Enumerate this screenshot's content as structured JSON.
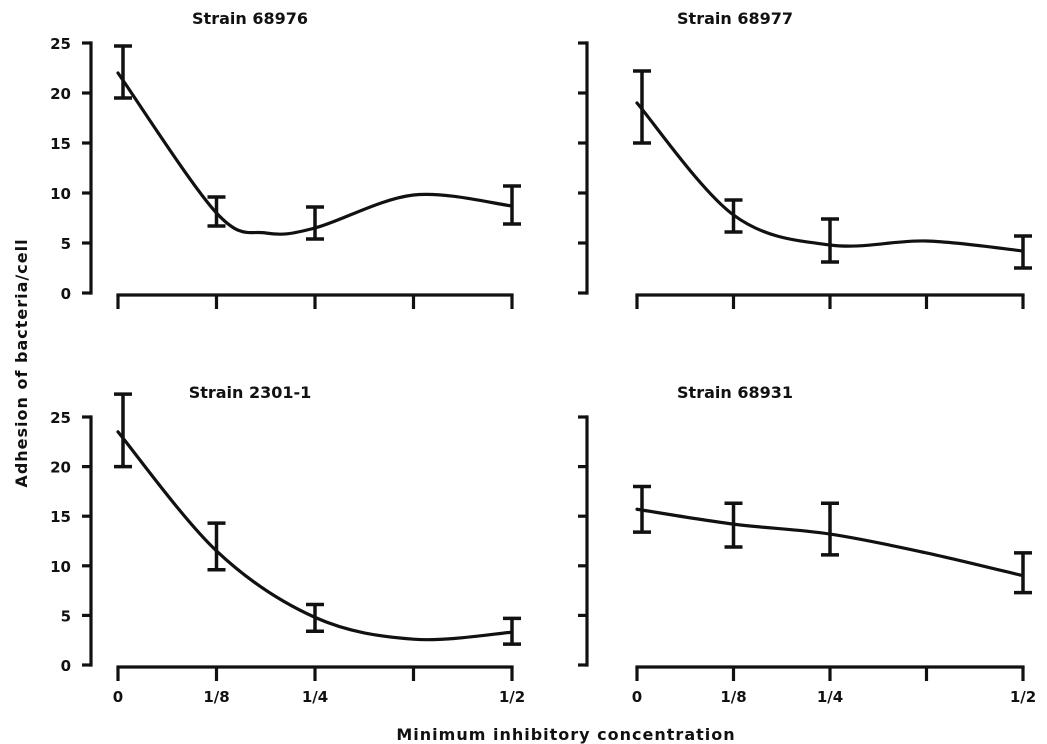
{
  "figure": {
    "xlabel": "Minimum inhibitory concentration",
    "ylabel": "Adhesion of bacteria/cell"
  },
  "chart_data": [
    {
      "type": "line",
      "title": "Strain 68976",
      "x": [
        0,
        0.125,
        0.25,
        0.5
      ],
      "x_tick_labels": [
        "0",
        "1/8",
        "1/4",
        "1/2"
      ],
      "y_ticks": [
        0,
        5,
        10,
        15,
        20,
        25
      ],
      "ylim": [
        0,
        25
      ],
      "y": [
        22,
        8,
        7,
        8.7
      ],
      "err_low": [
        19.5,
        6.7,
        5.4,
        6.9
      ],
      "err_high": [
        24.7,
        9.6,
        8.6,
        10.7
      ],
      "curve": [
        [
          0,
          22
        ],
        [
          0.125,
          8
        ],
        [
          0.1875,
          6
        ],
        [
          0.25,
          6.5
        ],
        [
          0.375,
          9.8
        ],
        [
          0.5,
          8.7
        ]
      ]
    },
    {
      "type": "line",
      "title": "Strain 68977",
      "x": [
        0,
        0.125,
        0.25,
        0.5
      ],
      "x_tick_labels": [
        "0",
        "1/8",
        "1/4",
        "1/2"
      ],
      "y_ticks": [
        0,
        5,
        10,
        15,
        20,
        25
      ],
      "ylim": [
        0,
        25
      ],
      "y": [
        19,
        7.8,
        5.2,
        4.2
      ],
      "err_low": [
        15,
        6.1,
        3.1,
        2.5
      ],
      "err_high": [
        22.2,
        9.3,
        7.4,
        5.7
      ],
      "curve": [
        [
          0,
          19
        ],
        [
          0.125,
          7.8
        ],
        [
          0.25,
          4.8
        ],
        [
          0.375,
          5.2
        ],
        [
          0.5,
          4.2
        ]
      ]
    },
    {
      "type": "line",
      "title": "Strain 2301-1",
      "x": [
        0,
        0.125,
        0.25,
        0.5
      ],
      "x_tick_labels": [
        "0",
        "1/8",
        "1/4",
        "1/2"
      ],
      "y_ticks": [
        0,
        5,
        10,
        15,
        20,
        25
      ],
      "ylim": [
        0,
        25
      ],
      "y": [
        23.5,
        11.5,
        4.8,
        3.3
      ],
      "err_low": [
        20,
        9.6,
        3.4,
        2.1
      ],
      "err_high": [
        27.3,
        14.3,
        6.1,
        4.7
      ],
      "curve": [
        [
          0,
          23.5
        ],
        [
          0.125,
          11.5
        ],
        [
          0.25,
          4.8
        ],
        [
          0.375,
          2.6
        ],
        [
          0.5,
          3.3
        ]
      ]
    },
    {
      "type": "line",
      "title": "Strain 68931",
      "x": [
        0,
        0.125,
        0.25,
        0.5
      ],
      "x_tick_labels": [
        "0",
        "1/8",
        "1/4",
        "1/2"
      ],
      "y_ticks": [
        0,
        5,
        10,
        15,
        20,
        25
      ],
      "ylim": [
        0,
        25
      ],
      "y": [
        15.7,
        14.2,
        13.2,
        9
      ],
      "err_low": [
        13.4,
        11.9,
        11.1,
        7.3
      ],
      "err_high": [
        18,
        16.3,
        16.3,
        11.3
      ],
      "curve": [
        [
          0,
          15.7
        ],
        [
          0.125,
          14.2
        ],
        [
          0.25,
          13.2
        ],
        [
          0.375,
          11.3
        ],
        [
          0.5,
          9
        ]
      ]
    }
  ]
}
